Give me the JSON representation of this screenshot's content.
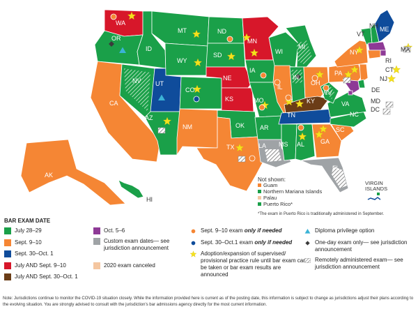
{
  "colors": {
    "july": "#1aa049",
    "sept": "#f58634",
    "sept30": "#0f4c9b",
    "july_and_sept": "#d7172a",
    "july_and_sept30": "#6b3d17",
    "oct": "#8e3a96",
    "custom": "#9fa3a6",
    "canceled": "#f4c6a0",
    "circle_orange": "#f58634",
    "circle_blue": "#0f4c9b",
    "star": "#f5e11d",
    "diploma": "#3bb3d6"
  },
  "states": [
    {
      "abbr": "WA",
      "color": "july_and_sept"
    },
    {
      "abbr": "OR",
      "color": "july"
    },
    {
      "abbr": "CA",
      "color": "sept"
    },
    {
      "abbr": "AK",
      "color": "sept"
    },
    {
      "abbr": "HI",
      "color": "july"
    },
    {
      "abbr": "ID",
      "color": "july"
    },
    {
      "abbr": "NV",
      "color": "july"
    },
    {
      "abbr": "UT",
      "color": "sept30"
    },
    {
      "abbr": "AZ",
      "color": "july"
    },
    {
      "abbr": "MT",
      "color": "july"
    },
    {
      "abbr": "WY",
      "color": "july"
    },
    {
      "abbr": "CO",
      "color": "july"
    },
    {
      "abbr": "NM",
      "color": "sept"
    },
    {
      "abbr": "ND",
      "color": "july"
    },
    {
      "abbr": "SD",
      "color": "july"
    },
    {
      "abbr": "NE",
      "color": "july_and_sept"
    },
    {
      "abbr": "KS",
      "color": "july_and_sept"
    },
    {
      "abbr": "OK",
      "color": "july"
    },
    {
      "abbr": "TX",
      "color": "sept"
    },
    {
      "abbr": "MN",
      "color": "july_and_sept"
    },
    {
      "abbr": "IA",
      "color": "july"
    },
    {
      "abbr": "MO",
      "color": "july"
    },
    {
      "abbr": "AR",
      "color": "july"
    },
    {
      "abbr": "LA",
      "color": "custom"
    },
    {
      "abbr": "WI",
      "color": "july"
    },
    {
      "abbr": "IL",
      "color": "sept"
    },
    {
      "abbr": "MI",
      "color": "july"
    },
    {
      "abbr": "IN",
      "color": "july"
    },
    {
      "abbr": "OH",
      "color": "sept"
    },
    {
      "abbr": "KY",
      "color": "july_and_sept30"
    },
    {
      "abbr": "TN",
      "color": "sept30"
    },
    {
      "abbr": "MS",
      "color": "july"
    },
    {
      "abbr": "AL",
      "color": "july"
    },
    {
      "abbr": "GA",
      "color": "sept"
    },
    {
      "abbr": "FL",
      "color": "custom"
    },
    {
      "abbr": "SC",
      "color": "sept"
    },
    {
      "abbr": "NC",
      "color": "july"
    },
    {
      "abbr": "VA",
      "color": "july"
    },
    {
      "abbr": "WV",
      "color": "july"
    },
    {
      "abbr": "PA",
      "color": "sept"
    },
    {
      "abbr": "NY",
      "color": "sept"
    },
    {
      "abbr": "VT",
      "color": "july"
    },
    {
      "abbr": "NH",
      "color": "july"
    },
    {
      "abbr": "ME",
      "color": "sept30"
    },
    {
      "abbr": "MA",
      "color": "oct"
    },
    {
      "abbr": "RI",
      "color": "oct"
    },
    {
      "abbr": "CT",
      "color": "sept"
    },
    {
      "abbr": "NJ",
      "color": "sept"
    },
    {
      "abbr": "DE",
      "color": "july"
    },
    {
      "abbr": "MD",
      "color": "oct"
    },
    {
      "abbr": "DC",
      "color": "oct"
    }
  ],
  "not_shown": {
    "title": "Not shown:",
    "items": [
      {
        "label": "Guam",
        "color": "sept"
      },
      {
        "label": "Northern Mariana Islands",
        "color": "july"
      },
      {
        "label": "Palau",
        "color": "canceled"
      },
      {
        "label": "Puerto Rico*",
        "color": "july"
      }
    ],
    "virgin_islands": [
      "VIRGIN",
      "ISLANDS"
    ],
    "footnote": "*The exam in Puerto Rico is traditionally administered in September."
  },
  "legend": {
    "title": "BAR EXAM DATE",
    "dates": [
      {
        "label": "July 28–29",
        "color": "july"
      },
      {
        "label": "Sept. 9–10",
        "color": "sept"
      },
      {
        "label": "Sept. 30–Oct. 1",
        "color": "sept30"
      },
      {
        "label": "July AND Sept. 9–10",
        "color": "july_and_sept"
      },
      {
        "label": "July AND Sept. 30–Oct. 1",
        "color": "july_and_sept30"
      },
      {
        "label": "Oct. 5–6",
        "color": "oct"
      },
      {
        "label": "Custom exam dates— see jurisdiction announcement",
        "color": "custom"
      },
      {
        "label": "2020 exam canceled",
        "color": "canceled"
      }
    ],
    "symbols": [
      {
        "label": "Sept. 9–10 exam ",
        "emph": "only if needed",
        "kind": "circle-orange"
      },
      {
        "label": "Sept. 30–Oct.1 exam ",
        "emph": "only if needed",
        "kind": "circle-blue"
      },
      {
        "label": "Adoption/expansion of supervised/ provisional practice rule until bar exam can be taken or bar exam results are announced",
        "kind": "star"
      },
      {
        "label": "Diploma privilege option",
        "kind": "triangle"
      },
      {
        "label": "One-day exam only— see jurisdiction announcement",
        "kind": "diamond"
      },
      {
        "label": "Remotely administered exam— see jurisdiction announcement",
        "kind": "hatch"
      }
    ]
  },
  "note": "Note: Jurisdictions continue to monitor the COVID-19 situation closely. While the information provided here is current as of the posting date, this information is subject to change as jurisdictions adjust their plans according to the evolving situation. You are strongly advised to consult with the jurisdiction's bar admissions agency directly for the most current information."
}
